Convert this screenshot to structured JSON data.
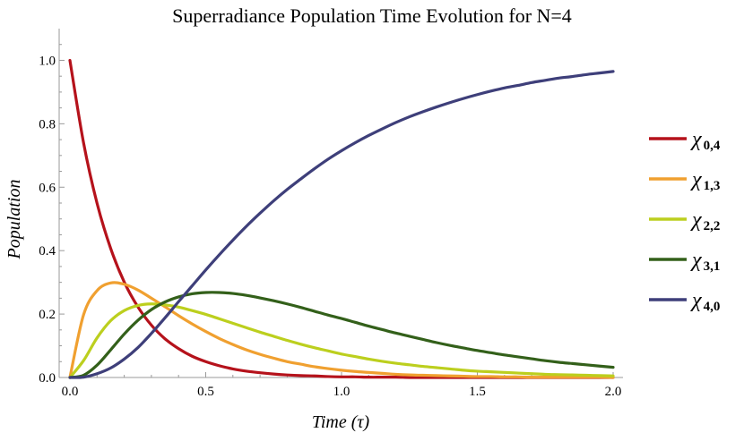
{
  "chart_data": {
    "type": "line",
    "title": "Superradiance Population Time Evolution for N=4",
    "xlabel": "Time (τ)",
    "ylabel": "Population",
    "xlim": [
      0,
      2.0
    ],
    "ylim": [
      0,
      1.1
    ],
    "xticks": [
      0.0,
      0.5,
      1.0,
      1.5,
      2.0
    ],
    "xtick_labels": [
      "0.0",
      "0.5",
      "1.0",
      "1.5",
      "2.0"
    ],
    "yticks": [
      0.0,
      0.2,
      0.4,
      0.6,
      0.8,
      1.0
    ],
    "ytick_labels": [
      "0.0",
      "0.2",
      "0.4",
      "0.6",
      "0.8",
      "1.0"
    ],
    "grid": false,
    "legend_position": "right",
    "x": [
      0,
      0.05,
      0.1,
      0.15,
      0.2,
      0.25,
      0.3,
      0.35,
      0.4,
      0.45,
      0.5,
      0.55,
      0.6,
      0.65,
      0.7,
      0.75,
      0.8,
      0.85,
      0.9,
      0.95,
      1.0,
      1.05,
      1.1,
      1.15,
      1.2,
      1.25,
      1.3,
      1.35,
      1.4,
      1.45,
      1.5,
      1.55,
      1.6,
      1.65,
      1.7,
      1.75,
      1.8,
      1.85,
      1.9,
      1.95,
      2.0
    ],
    "series": [
      {
        "name": "χ",
        "sub": "0,4",
        "color": "#b5121b",
        "values": [
          1.0,
          0.741,
          0.549,
          0.407,
          0.301,
          0.223,
          0.165,
          0.122,
          0.091,
          0.067,
          0.05,
          0.037,
          0.027,
          0.02,
          0.015,
          0.011,
          0.008,
          0.006,
          0.005,
          0.003,
          0.002,
          0.002,
          0.001,
          0.001,
          0.001,
          0.0,
          0.0,
          0.0,
          0.0,
          0.0,
          0.0,
          0.0,
          0.0,
          0.0,
          0.0,
          0.0,
          0.0,
          0.0,
          0.0,
          0.0,
          0.0
        ]
      },
      {
        "name": "χ",
        "sub": "1,3",
        "color": "#f0a030",
        "values": [
          0.0,
          0.197,
          0.274,
          0.298,
          0.294,
          0.276,
          0.25,
          0.223,
          0.195,
          0.169,
          0.145,
          0.123,
          0.104,
          0.087,
          0.073,
          0.061,
          0.05,
          0.042,
          0.034,
          0.028,
          0.023,
          0.019,
          0.016,
          0.013,
          0.01,
          0.008,
          0.007,
          0.006,
          0.005,
          0.004,
          0.003,
          0.003,
          0.002,
          0.002,
          0.001,
          0.001,
          0.001,
          0.001,
          0.001,
          0.001,
          0.0
        ]
      },
      {
        "name": "χ",
        "sub": "2,2",
        "color": "#bccf1e",
        "values": [
          0.0,
          0.053,
          0.125,
          0.179,
          0.211,
          0.227,
          0.232,
          0.229,
          0.222,
          0.211,
          0.199,
          0.185,
          0.171,
          0.157,
          0.143,
          0.13,
          0.117,
          0.105,
          0.094,
          0.084,
          0.074,
          0.066,
          0.058,
          0.051,
          0.045,
          0.04,
          0.035,
          0.031,
          0.027,
          0.023,
          0.02,
          0.018,
          0.016,
          0.014,
          0.012,
          0.01,
          0.009,
          0.008,
          0.007,
          0.006,
          0.005
        ]
      },
      {
        "name": "χ",
        "sub": "3,1",
        "color": "#33601a",
        "values": [
          0.0,
          0.007,
          0.039,
          0.087,
          0.137,
          0.18,
          0.214,
          0.238,
          0.254,
          0.264,
          0.268,
          0.268,
          0.265,
          0.259,
          0.251,
          0.242,
          0.232,
          0.221,
          0.209,
          0.197,
          0.186,
          0.174,
          0.162,
          0.151,
          0.14,
          0.13,
          0.12,
          0.11,
          0.101,
          0.093,
          0.085,
          0.078,
          0.071,
          0.065,
          0.059,
          0.053,
          0.048,
          0.044,
          0.04,
          0.036,
          0.032
        ]
      },
      {
        "name": "χ",
        "sub": "4,0",
        "color": "#3e3f7a",
        "values": [
          0.0,
          0.001,
          0.012,
          0.03,
          0.058,
          0.094,
          0.139,
          0.188,
          0.239,
          0.289,
          0.339,
          0.387,
          0.433,
          0.477,
          0.518,
          0.557,
          0.593,
          0.626,
          0.658,
          0.688,
          0.715,
          0.74,
          0.763,
          0.784,
          0.804,
          0.822,
          0.838,
          0.853,
          0.867,
          0.88,
          0.892,
          0.903,
          0.913,
          0.921,
          0.93,
          0.937,
          0.944,
          0.949,
          0.955,
          0.96,
          0.965
        ]
      }
    ]
  }
}
